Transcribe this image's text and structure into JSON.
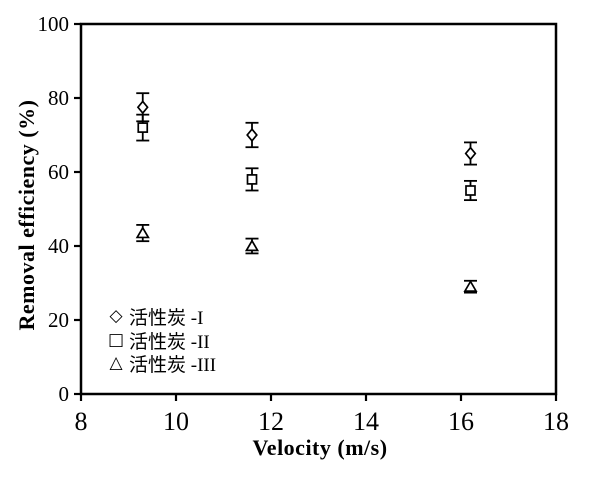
{
  "figure": {
    "background": "#ffffff",
    "ink": "#000000",
    "marker_fill": "#ffffff"
  },
  "chart_data": {
    "type": "scatter",
    "title": "",
    "xlabel": "Velocity (m/s)",
    "ylabel": "Removal efficiency (%)",
    "xlim": [
      8,
      18
    ],
    "ylim": [
      0,
      100
    ],
    "x_ticks": [
      8,
      10,
      12,
      14,
      16,
      18
    ],
    "y_ticks": [
      0,
      20,
      40,
      60,
      80,
      100
    ],
    "grid": false,
    "error_bars": true,
    "legend_position": "lower-left-inside",
    "series": [
      {
        "name": "活性炭 -I",
        "marker": "diamond",
        "x": [
          9.3,
          11.6,
          16.2
        ],
        "y": [
          77.5,
          70,
          65
        ],
        "yerr": [
          3.8,
          3.3,
          3.0
        ]
      },
      {
        "name": "活性炭 -II",
        "marker": "square",
        "x": [
          9.3,
          11.6,
          16.2
        ],
        "y": [
          72,
          58,
          55
        ],
        "yerr": [
          3.5,
          3.0,
          2.6
        ]
      },
      {
        "name": "活性炭 -III",
        "marker": "triangle",
        "x": [
          9.3,
          11.6,
          16.2
        ],
        "y": [
          43.5,
          40,
          29
        ],
        "yerr": [
          2.2,
          2.0,
          1.6
        ]
      }
    ],
    "legend": [
      {
        "symbol": "◇",
        "label": "活性炭 -I"
      },
      {
        "symbol": "□",
        "label": "活性炭 -II"
      },
      {
        "symbol": "△",
        "label": "活性炭 -III"
      }
    ]
  }
}
